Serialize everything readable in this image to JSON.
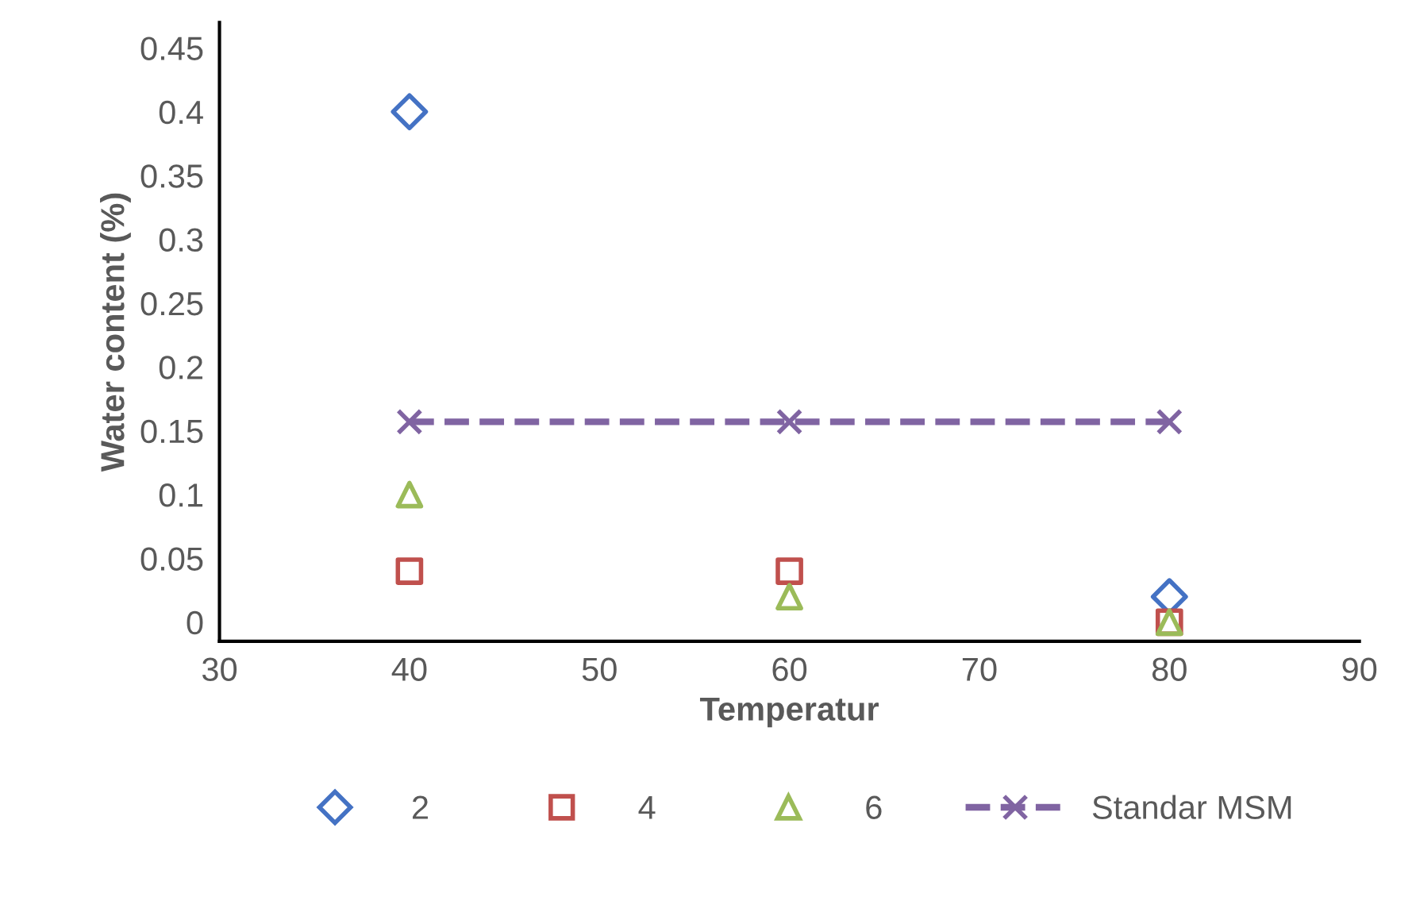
{
  "chart_data": {
    "type": "scatter",
    "xlabel": "Temperatur",
    "ylabel": "Water content (%)",
    "x": [
      40,
      60,
      80
    ],
    "series": [
      {
        "name": "2",
        "color": "#4472c4",
        "marker": "diamond",
        "values": [
          0.4,
          null,
          0.02
        ]
      },
      {
        "name": "4",
        "color": "#c0504d",
        "marker": "square",
        "values": [
          0.04,
          0.04,
          0
        ]
      },
      {
        "name": "6",
        "color": "#9bbb59",
        "marker": "triangle",
        "values": [
          0.1,
          0.02,
          0
        ]
      },
      {
        "name": "Standar MSM",
        "type": "line",
        "color": "#8064a2",
        "marker": "cross",
        "line_style": "dashed",
        "values": [
          0.157,
          0.157,
          0.157
        ]
      }
    ],
    "xlim": [
      30,
      90
    ],
    "xticks": [
      30,
      40,
      50,
      60,
      70,
      80,
      90
    ],
    "ylim": [
      -0.015,
      0.47
    ],
    "yticks": [
      0,
      0.05,
      0.1,
      0.15,
      0.2,
      0.25,
      0.3,
      0.35,
      0.4,
      0.45
    ],
    "grid": false,
    "legend": "bottom"
  }
}
